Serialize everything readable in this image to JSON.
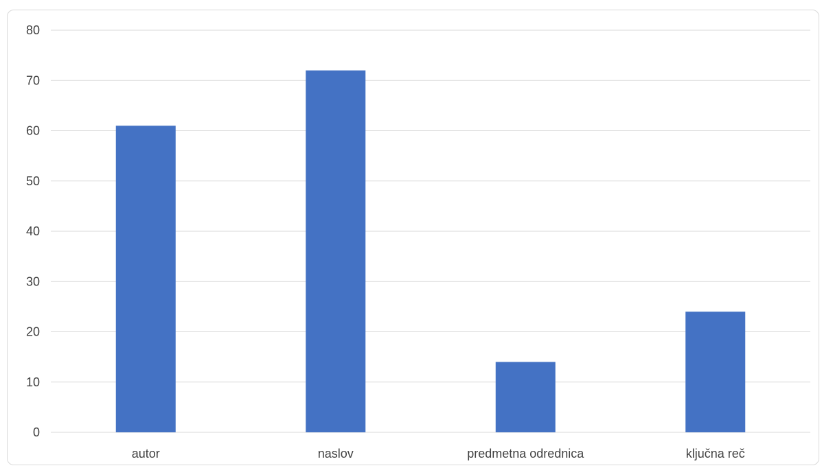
{
  "chart_data": {
    "type": "bar",
    "categories": [
      "autor",
      "naslov",
      "predmetna odrednica",
      "ključna reč"
    ],
    "values": [
      61,
      72,
      14,
      24
    ],
    "title": "",
    "xlabel": "",
    "ylabel": "",
    "ylim": [
      0,
      80
    ],
    "yticks": [
      "0",
      "10",
      "20",
      "30",
      "40",
      "50",
      "60",
      "70",
      "80"
    ],
    "grid": true,
    "legend": "none",
    "bar_color": "#4472c4",
    "grid_color": "#d9d9d9"
  }
}
